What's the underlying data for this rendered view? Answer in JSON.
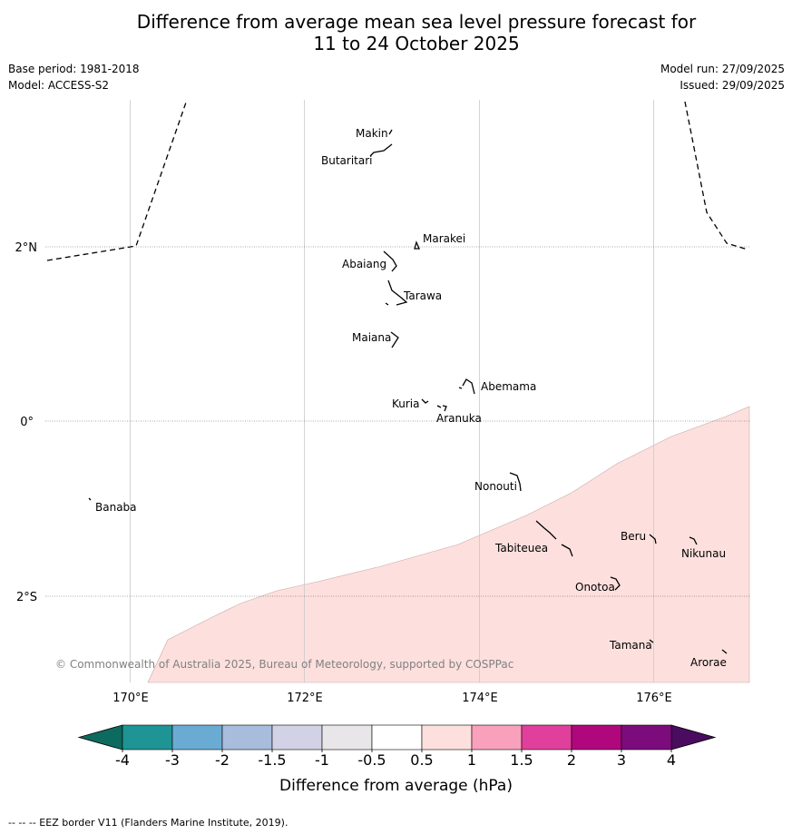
{
  "title_line1": "Difference from average mean sea level pressure forecast for",
  "title_line2": "11 to 24 October 2025",
  "base_period": "Base period: 1981-2018",
  "model": "Model: ACCESS-S2",
  "model_run": "Model run: 27/09/2025",
  "issued": "Issued: 29/09/2025",
  "copyright": "© Commonwealth of Australia 2025, Bureau of Meteorology, supported by COSPPac",
  "lat_labels": [
    "2°N",
    "0°",
    "2°S"
  ],
  "lon_labels": [
    "170°E",
    "172°E",
    "174°E",
    "176°E"
  ],
  "places": [
    {
      "name": "Makin"
    },
    {
      "name": "Butaritari"
    },
    {
      "name": "Marakei"
    },
    {
      "name": "Abaiang"
    },
    {
      "name": "Tarawa"
    },
    {
      "name": "Maiana"
    },
    {
      "name": "Abemama"
    },
    {
      "name": "Kuria"
    },
    {
      "name": "Aranuka"
    },
    {
      "name": "Nonouti"
    },
    {
      "name": "Banaba"
    },
    {
      "name": "Tabiteuea"
    },
    {
      "name": "Beru"
    },
    {
      "name": "Nikunau"
    },
    {
      "name": "Onotoa"
    },
    {
      "name": "Tamana"
    },
    {
      "name": "Arorae"
    }
  ],
  "colorbar": {
    "title": "Difference from average (hPa)",
    "ticks": [
      "-4",
      "-3",
      "-2",
      "-1.5",
      "-1",
      "-0.5",
      "0.5",
      "1",
      "1.5",
      "2",
      "3",
      "4"
    ],
    "colors": [
      "#1e9494",
      "#6aabd4",
      "#a8bcdc",
      "#d2d2e6",
      "#e8e6e8",
      "#ffffff",
      "#fde0de",
      "#f8a0bc",
      "#e0409c",
      "#b0087c",
      "#7c0c7c"
    ],
    "under_color": "#0d6a5e",
    "over_color": "#4a0c5e"
  },
  "anomaly_fill_color": "#fde0de",
  "footnote": "--  --  -- EEZ border V11 (Flanders Marine Institute, 2019)."
}
